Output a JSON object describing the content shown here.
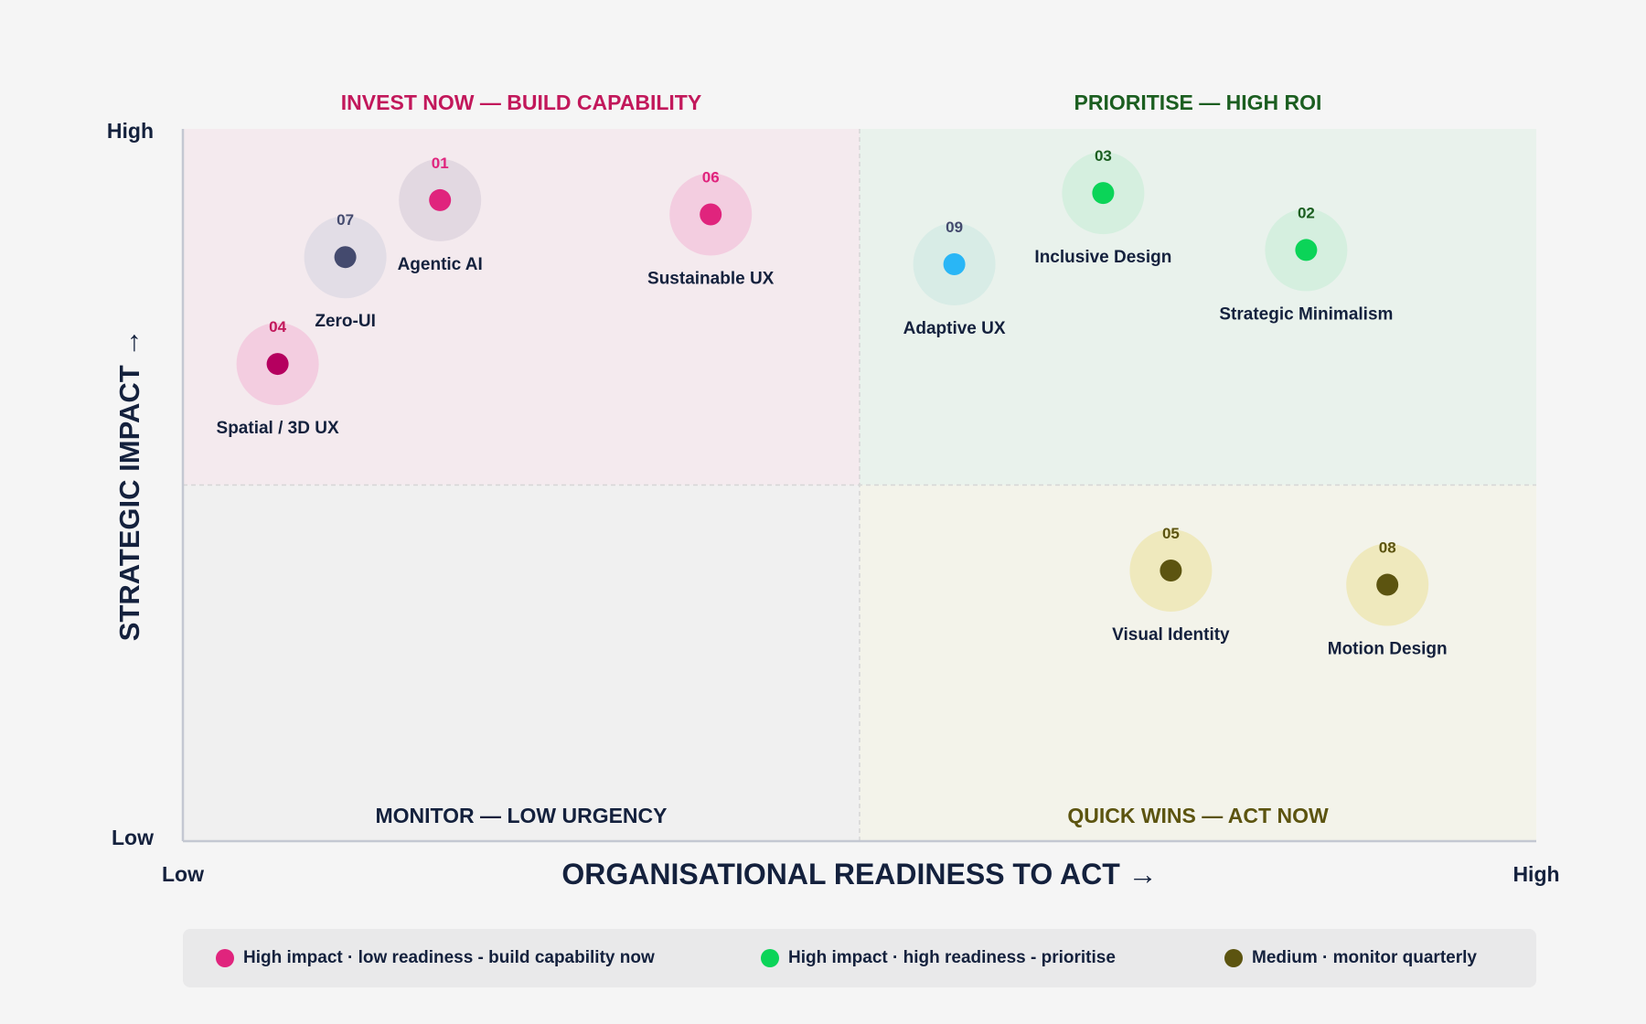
{
  "chart_data": {
    "type": "scatter",
    "xlabel": "ORGANISATIONAL READINESS TO ACT →",
    "ylabel": "STRATEGIC IMPACT →",
    "x_ticks": {
      "low": "Low",
      "high": "High"
    },
    "y_ticks": {
      "low": "Low",
      "high": "High"
    },
    "xlim": [
      0,
      10
    ],
    "ylim": [
      0,
      10
    ],
    "grid": false,
    "quadrants": [
      {
        "id": "top-left",
        "label": "INVEST NOW — BUILD CAPABILITY",
        "color": "#c2185b",
        "fill": "#f4eaee"
      },
      {
        "id": "top-right",
        "label": "PRIORITISE — HIGH ROI",
        "color": "#1b5e20",
        "fill": "#e9f2ec"
      },
      {
        "id": "bottom-left",
        "label": "MONITOR — LOW URGENCY",
        "color": "#14213d",
        "fill": "#f0f0f0"
      },
      {
        "id": "bottom-right",
        "label": "QUICK WINS — ACT NOW",
        "color": "#5c5410",
        "fill": "#f3f3ea"
      }
    ],
    "points": [
      {
        "id": "01",
        "name": "Agentic AI",
        "x": 1.9,
        "y": 9.0,
        "color": "#e0247d",
        "num_color": "#e0247d",
        "halo": "#e2d8e1"
      },
      {
        "id": "02",
        "name": "Strategic Minimalism",
        "x": 8.3,
        "y": 8.3,
        "color": "#0bd458",
        "num_color": "#1b5e20",
        "halo": "#d5efdf"
      },
      {
        "id": "03",
        "name": "Inclusive Design",
        "x": 6.8,
        "y": 9.1,
        "color": "#0bd458",
        "num_color": "#1b5e20",
        "halo": "#d5efdf"
      },
      {
        "id": "04",
        "name": "Spatial / 3D UX",
        "x": 0.7,
        "y": 6.7,
        "color": "#b5005f",
        "num_color": "#c2185b",
        "halo": "#f3cde0"
      },
      {
        "id": "05",
        "name": "Visual Identity",
        "x": 7.3,
        "y": 3.8,
        "color": "#5c5410",
        "num_color": "#5c5410",
        "halo": "#efe9bd"
      },
      {
        "id": "06",
        "name": "Sustainable UX",
        "x": 3.9,
        "y": 8.8,
        "color": "#e0247d",
        "num_color": "#e0247d",
        "halo": "#f3cde0"
      },
      {
        "id": "07",
        "name": "Zero-UI",
        "x": 1.2,
        "y": 8.2,
        "color": "#444a6e",
        "num_color": "#444a6e",
        "halo": "#e2dde6"
      },
      {
        "id": "08",
        "name": "Motion Design",
        "x": 8.9,
        "y": 3.6,
        "color": "#5c5410",
        "num_color": "#5c5410",
        "halo": "#efe9bd"
      },
      {
        "id": "09",
        "name": "Adaptive UX",
        "x": 5.7,
        "y": 8.1,
        "color": "#29b6f6",
        "num_color": "#444a6e",
        "halo": "#d8ece6"
      }
    ],
    "legend": {
      "position": "bottom",
      "items": [
        {
          "label": "High impact · low readiness - build capability now",
          "color": "#e0247d"
        },
        {
          "label": "High impact · high readiness - prioritise",
          "color": "#0bd458"
        },
        {
          "label": "Medium · monitor quarterly",
          "color": "#5c5410"
        }
      ]
    }
  }
}
